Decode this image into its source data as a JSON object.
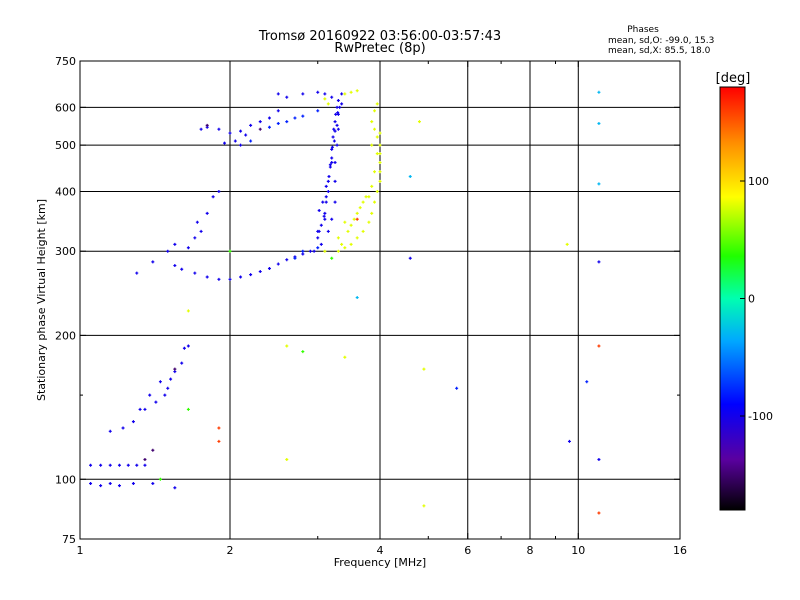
{
  "chart_data": {
    "type": "scatter",
    "title_line1": "Tromsø 20160922 03:56:00-03:57:43",
    "title_line2": "RwPretec (8p)",
    "phase_header": "Phases",
    "phase_o": "mean, sd,O: -99.0, 15.3",
    "phase_x": "mean, sd,X:  85.5, 18.0",
    "xlabel": "Frequency [MHz]",
    "ylabel": "Stationary phase Virtual Height [km]",
    "xscale": "log",
    "yscale": "log",
    "xlim": [
      1,
      16
    ],
    "ylim": [
      75,
      750
    ],
    "xticks": [
      1,
      2,
      4,
      6,
      8,
      10,
      16
    ],
    "xtick_labels": [
      "1",
      "2",
      "4",
      "6",
      "8",
      "10",
      "16"
    ],
    "xgrid": [
      2,
      4,
      6,
      8,
      10
    ],
    "xminor": [
      3,
      5,
      7,
      9
    ],
    "yticks": [
      75,
      100,
      200,
      300,
      400,
      500,
      600,
      750
    ],
    "ytick_labels": [
      "75",
      "100",
      "200",
      "300",
      "400",
      "500",
      "600",
      "750"
    ],
    "ygrid": [
      100,
      200,
      300,
      400,
      500,
      600
    ],
    "yminor": [
      150
    ],
    "colorbar": {
      "label": "[deg]",
      "range": [
        -180,
        180
      ],
      "ticks": [
        -100,
        0,
        100
      ],
      "tick_labels": [
        "-100",
        "0",
        "100"
      ]
    },
    "series": [
      {
        "phase": -99,
        "points": [
          [
            1.05,
            107
          ],
          [
            1.1,
            107
          ],
          [
            1.15,
            107
          ],
          [
            1.2,
            107
          ],
          [
            1.25,
            107
          ],
          [
            1.3,
            107
          ],
          [
            1.35,
            107
          ],
          [
            1.05,
            98
          ],
          [
            1.1,
            97
          ],
          [
            1.15,
            98
          ],
          [
            1.2,
            97
          ],
          [
            1.28,
            98
          ],
          [
            1.4,
            98
          ],
          [
            1.55,
            96
          ],
          [
            1.15,
            126
          ],
          [
            1.22,
            128
          ],
          [
            1.28,
            132
          ],
          [
            1.32,
            140
          ],
          [
            1.38,
            150
          ],
          [
            1.45,
            160
          ],
          [
            1.5,
            155
          ],
          [
            1.55,
            168
          ],
          [
            1.6,
            175
          ],
          [
            1.35,
            140
          ],
          [
            1.42,
            145
          ],
          [
            1.48,
            150
          ],
          [
            1.52,
            162
          ],
          [
            1.62,
            188
          ],
          [
            1.65,
            190
          ],
          [
            1.3,
            270
          ],
          [
            1.4,
            285
          ],
          [
            1.5,
            300
          ],
          [
            1.55,
            280
          ],
          [
            1.6,
            275
          ],
          [
            1.7,
            270
          ],
          [
            1.8,
            265
          ],
          [
            1.9,
            262
          ],
          [
            2.0,
            262
          ],
          [
            2.1,
            265
          ],
          [
            2.2,
            268
          ],
          [
            2.3,
            272
          ],
          [
            2.4,
            276
          ],
          [
            2.5,
            282
          ],
          [
            2.6,
            288
          ],
          [
            2.7,
            292
          ],
          [
            2.8,
            296
          ],
          [
            2.9,
            300
          ],
          [
            1.55,
            310
          ],
          [
            1.65,
            305
          ],
          [
            1.7,
            320
          ],
          [
            1.75,
            330
          ],
          [
            1.8,
            360
          ],
          [
            1.85,
            390
          ],
          [
            1.9,
            400
          ],
          [
            1.72,
            345
          ],
          [
            1.75,
            540
          ],
          [
            1.8,
            545
          ],
          [
            1.9,
            540
          ],
          [
            2.0,
            530
          ],
          [
            2.1,
            535
          ],
          [
            2.2,
            550
          ],
          [
            2.3,
            560
          ],
          [
            2.4,
            570
          ],
          [
            2.5,
            590
          ],
          [
            1.95,
            505
          ],
          [
            2.05,
            510
          ],
          [
            2.1,
            500
          ],
          [
            2.15,
            525
          ],
          [
            2.5,
            640
          ],
          [
            2.6,
            630
          ],
          [
            2.8,
            640
          ],
          [
            3.0,
            645
          ],
          [
            3.1,
            640
          ],
          [
            3.2,
            630
          ],
          [
            3.0,
            320
          ],
          [
            3.05,
            340
          ],
          [
            3.1,
            360
          ],
          [
            3.12,
            390
          ],
          [
            3.15,
            420
          ],
          [
            3.18,
            450
          ],
          [
            3.2,
            490
          ],
          [
            3.22,
            520
          ],
          [
            3.25,
            560
          ],
          [
            3.28,
            600
          ],
          [
            3.05,
            310
          ],
          [
            3.0,
            330
          ],
          [
            3.02,
            365
          ],
          [
            3.07,
            380
          ],
          [
            3.15,
            400
          ],
          [
            3.2,
            460
          ],
          [
            3.23,
            540
          ],
          [
            3.26,
            580
          ],
          [
            3.3,
            620
          ],
          [
            2.95,
            300
          ],
          [
            3.1,
            350
          ],
          [
            3.12,
            380
          ],
          [
            3.16,
            430
          ],
          [
            3.2,
            470
          ],
          [
            3.24,
            510
          ],
          [
            3.28,
            550
          ],
          [
            3.3,
            580
          ],
          [
            3.35,
            610
          ],
          [
            3.02,
            330
          ],
          [
            3.09,
            355
          ],
          [
            3.12,
            410
          ],
          [
            3.18,
            455
          ],
          [
            3.21,
            495
          ],
          [
            3.25,
            535
          ],
          [
            3.29,
            585
          ],
          [
            3.32,
            600
          ],
          [
            3.35,
            640
          ],
          [
            3.15,
            330
          ],
          [
            3.2,
            350
          ],
          [
            3.25,
            380
          ],
          [
            3.25,
            420
          ],
          [
            3.25,
            460
          ],
          [
            3.28,
            500
          ],
          [
            3.3,
            540
          ],
          [
            4.6,
            290
          ],
          [
            11.0,
            285
          ],
          [
            9.6,
            120
          ],
          [
            11.0,
            110
          ]
        ]
      },
      {
        "phase": -80,
        "points": [
          [
            2.6,
            560
          ],
          [
            2.7,
            570
          ],
          [
            2.8,
            575
          ],
          [
            3.0,
            590
          ],
          [
            2.4,
            545
          ],
          [
            2.5,
            555
          ],
          [
            2.7,
            290
          ],
          [
            2.8,
            300
          ],
          [
            3.0,
            305
          ],
          [
            2.2,
            510
          ],
          [
            5.7,
            155
          ],
          [
            10.4,
            160
          ]
        ]
      },
      {
        "phase": 80,
        "points": [
          [
            3.1,
            300
          ],
          [
            3.3,
            300
          ],
          [
            3.4,
            305
          ],
          [
            3.5,
            310
          ],
          [
            3.6,
            320
          ],
          [
            3.7,
            330
          ],
          [
            3.8,
            345
          ],
          [
            3.85,
            360
          ],
          [
            3.9,
            380
          ],
          [
            3.95,
            400
          ],
          [
            4.0,
            420
          ],
          [
            4.0,
            440
          ],
          [
            4.0,
            460
          ],
          [
            4.0,
            480
          ],
          [
            4.0,
            500
          ],
          [
            3.95,
            520
          ],
          [
            3.9,
            540
          ],
          [
            3.85,
            560
          ],
          [
            3.9,
            590
          ],
          [
            3.95,
            610
          ],
          [
            3.35,
            310
          ],
          [
            3.45,
            330
          ],
          [
            3.55,
            350
          ],
          [
            3.65,
            370
          ],
          [
            3.75,
            390
          ],
          [
            3.85,
            410
          ],
          [
            3.3,
            320
          ],
          [
            3.4,
            345
          ],
          [
            3.5,
            340
          ],
          [
            3.6,
            360
          ],
          [
            3.7,
            380
          ],
          [
            3.8,
            390
          ],
          [
            3.9,
            440
          ],
          [
            3.95,
            480
          ],
          [
            4.0,
            530
          ],
          [
            3.85,
            500
          ],
          [
            3.5,
            645
          ],
          [
            3.6,
            650
          ],
          [
            3.4,
            640
          ],
          [
            3.1,
            625
          ],
          [
            3.15,
            610
          ],
          [
            9.5,
            310
          ],
          [
            4.9,
            88
          ],
          [
            4.9,
            170
          ],
          [
            2.6,
            190
          ],
          [
            3.4,
            180
          ],
          [
            2.6,
            110
          ],
          [
            1.65,
            225
          ],
          [
            4.8,
            560
          ]
        ]
      },
      {
        "phase": 160,
        "points": [
          [
            1.9,
            120
          ],
          [
            1.9,
            128
          ],
          [
            3.6,
            350
          ],
          [
            11.0,
            85
          ],
          [
            11.0,
            190
          ]
        ]
      },
      {
        "phase": 40,
        "points": [
          [
            2.0,
            300
          ],
          [
            2.8,
            185
          ],
          [
            3.2,
            290
          ],
          [
            1.65,
            140
          ],
          [
            1.45,
            100
          ]
        ]
      },
      {
        "phase": -30,
        "points": [
          [
            11.0,
            645
          ],
          [
            11.0,
            555
          ],
          [
            11.0,
            415
          ],
          [
            3.6,
            240
          ],
          [
            4.6,
            430
          ]
        ]
      },
      {
        "phase": -150,
        "points": [
          [
            1.35,
            110
          ],
          [
            1.4,
            115
          ],
          [
            1.55,
            170
          ],
          [
            2.3,
            540
          ],
          [
            1.8,
            550
          ]
        ]
      }
    ]
  }
}
